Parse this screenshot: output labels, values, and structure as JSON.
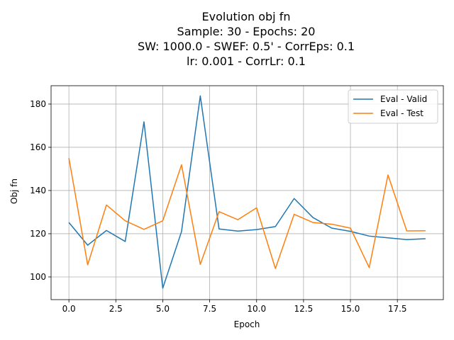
{
  "chart_data": {
    "type": "line",
    "title_lines": [
      "Evolution obj fn",
      "Sample: 30 - Epochs: 20",
      "SW: 1000.0 - SWEF: 0.5' - CorrEps: 0.1",
      "lr: 0.001 - CorrLr: 0.1"
    ],
    "xlabel": "Epoch",
    "ylabel": "Obj fn",
    "x": [
      0,
      1,
      2,
      3,
      4,
      5,
      6,
      7,
      8,
      9,
      10,
      11,
      12,
      13,
      14,
      15,
      16,
      17,
      18,
      19
    ],
    "xlim": [
      -0.95,
      19.95
    ],
    "ylim": [
      89.5,
      188.5
    ],
    "xticks": [
      0.0,
      2.5,
      5.0,
      7.5,
      10.0,
      12.5,
      15.0,
      17.5
    ],
    "xtick_labels": [
      "0.0",
      "2.5",
      "5.0",
      "7.5",
      "10.0",
      "12.5",
      "15.0",
      "17.5"
    ],
    "yticks": [
      100,
      120,
      140,
      160,
      180
    ],
    "ytick_labels": [
      "100",
      "120",
      "140",
      "160",
      "180"
    ],
    "grid": true,
    "legend_position": "top-right",
    "series": [
      {
        "name": "Eval - Valid",
        "color": "#1f77b4",
        "values": [
          125.2,
          114.7,
          121.5,
          116.4,
          171.8,
          94.8,
          121.0,
          183.8,
          122.2,
          121.2,
          121.9,
          123.3,
          136.3,
          127.5,
          122.6,
          121.1,
          118.9,
          118.1,
          117.3,
          117.7
        ]
      },
      {
        "name": "Eval - Test",
        "color": "#ff7f0e",
        "values": [
          155.0,
          105.6,
          133.3,
          126.0,
          122.0,
          126.0,
          151.9,
          105.8,
          130.2,
          126.5,
          132.0,
          103.9,
          129.0,
          125.2,
          124.4,
          122.6,
          104.3,
          147.2,
          121.3,
          121.4
        ]
      }
    ]
  }
}
